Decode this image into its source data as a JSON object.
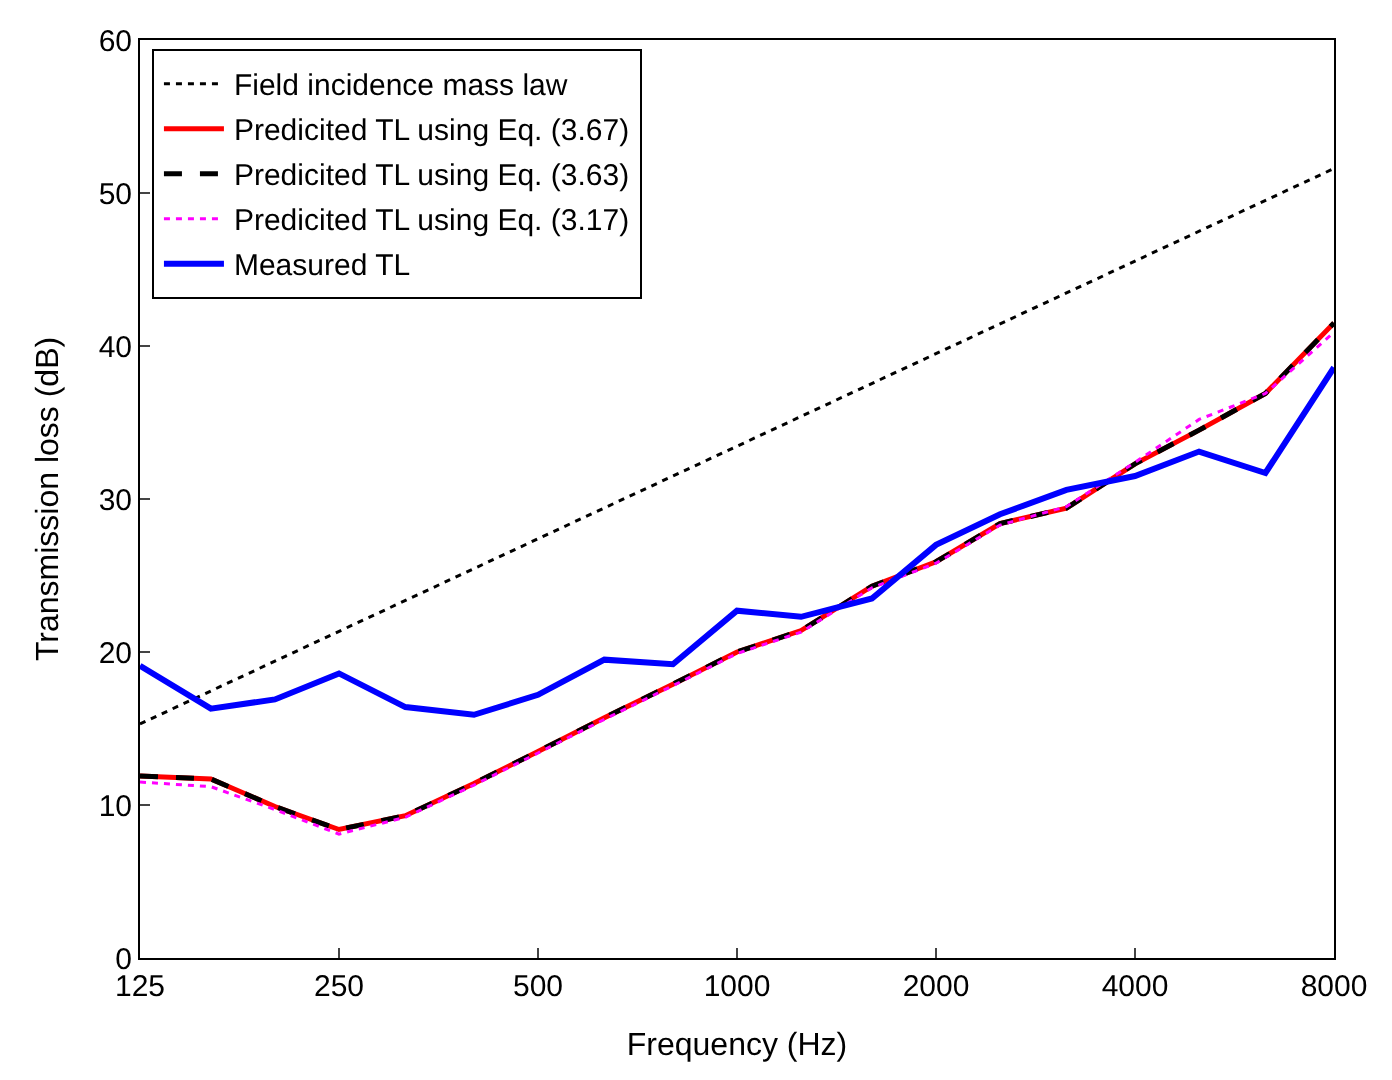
{
  "chart_data": {
    "type": "line",
    "xlabel": "Frequency (Hz)",
    "ylabel": "Transmission loss (dB)",
    "log": "x",
    "xlim": [
      125,
      8000
    ],
    "xticks": [
      125,
      250,
      500,
      1000,
      2000,
      4000,
      8000
    ],
    "ylim": [
      0,
      60
    ],
    "yticks": [
      0,
      10,
      20,
      30,
      40,
      50,
      60
    ],
    "legend": "top left",
    "x": [
      125,
      160,
      200,
      250,
      315,
      400,
      500,
      630,
      800,
      1000,
      1250,
      1600,
      2000,
      2500,
      3150,
      4000,
      5000,
      6300,
      8000
    ],
    "series": [
      {
        "name": "Field incidence mass law",
        "color": "#000000",
        "line_style": "dotted",
        "x": [
          125,
          8000
        ],
        "values": [
          15.3,
          51.6
        ]
      },
      {
        "name": "Predicited TL using Eq. (3.67)",
        "color": "#ff0000",
        "line_style": "solid",
        "values": [
          11.9,
          11.7,
          9.9,
          8.4,
          9.3,
          11.4,
          13.5,
          15.7,
          17.9,
          20.0,
          21.4,
          24.3,
          25.9,
          28.4,
          29.4,
          32.3,
          34.5,
          36.9,
          41.5
        ]
      },
      {
        "name": "Predicited TL using Eq. (3.63)",
        "color": "#000000",
        "line_style": "dashed",
        "values": [
          11.9,
          11.7,
          9.9,
          8.4,
          9.3,
          11.4,
          13.5,
          15.7,
          17.9,
          20.0,
          21.4,
          24.3,
          25.9,
          28.4,
          29.4,
          32.3,
          34.5,
          36.9,
          41.5
        ]
      },
      {
        "name": "Predicited TL using Eq. (3.17)",
        "color": "#ff00ff",
        "line_style": "dotted",
        "values": [
          11.5,
          11.2,
          9.7,
          8.1,
          9.2,
          11.3,
          13.4,
          15.6,
          17.8,
          19.9,
          21.3,
          24.2,
          25.8,
          28.3,
          29.5,
          32.4,
          35.2,
          36.9,
          40.9
        ]
      },
      {
        "name": "Measured TL",
        "color": "#0000ff",
        "line_style": "solid",
        "values": [
          19.1,
          16.3,
          16.9,
          18.6,
          16.4,
          15.9,
          17.2,
          19.5,
          19.2,
          22.7,
          22.3,
          23.5,
          27.0,
          29.0,
          30.6,
          31.5,
          33.1,
          31.7,
          38.6
        ]
      }
    ]
  }
}
